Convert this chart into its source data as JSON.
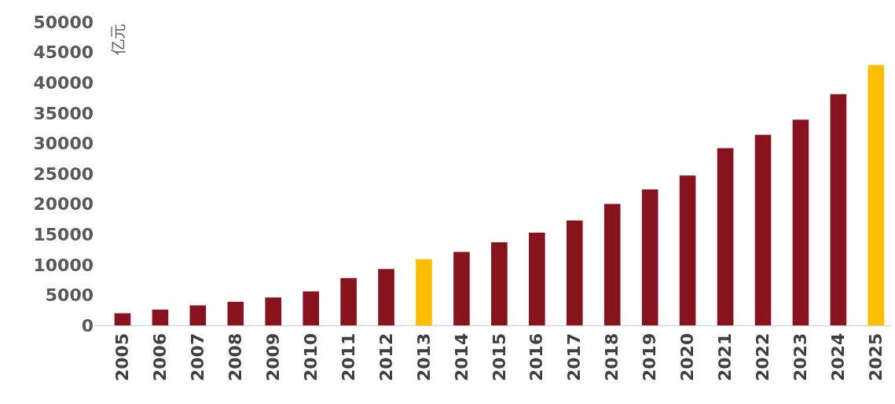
{
  "chart_data": {
    "type": "bar",
    "ylabel": "亿元",
    "categories": [
      "2005",
      "2006",
      "2007",
      "2008",
      "2009",
      "2010",
      "2011",
      "2012",
      "2013",
      "2014",
      "2015",
      "2016",
      "2017",
      "2018",
      "2019",
      "2020",
      "2021",
      "2022",
      "2023",
      "2024",
      "2025"
    ],
    "values": [
      2000,
      2600,
      3300,
      3900,
      4600,
      5600,
      7800,
      9300,
      10900,
      12100,
      13700,
      15300,
      17300,
      20000,
      22400,
      24700,
      29200,
      31400,
      33900,
      38100,
      42900
    ],
    "colors": [
      "#87131f",
      "#87131f",
      "#87131f",
      "#87131f",
      "#87131f",
      "#87131f",
      "#87131f",
      "#87131f",
      "#fbbf00",
      "#87131f",
      "#87131f",
      "#87131f",
      "#87131f",
      "#87131f",
      "#87131f",
      "#87131f",
      "#87131f",
      "#87131f",
      "#87131f",
      "#87131f",
      "#fbbf00"
    ],
    "ylim": [
      0,
      50000
    ],
    "yticks": [
      0,
      5000,
      10000,
      15000,
      20000,
      25000,
      30000,
      35000,
      40000,
      45000,
      50000
    ]
  }
}
